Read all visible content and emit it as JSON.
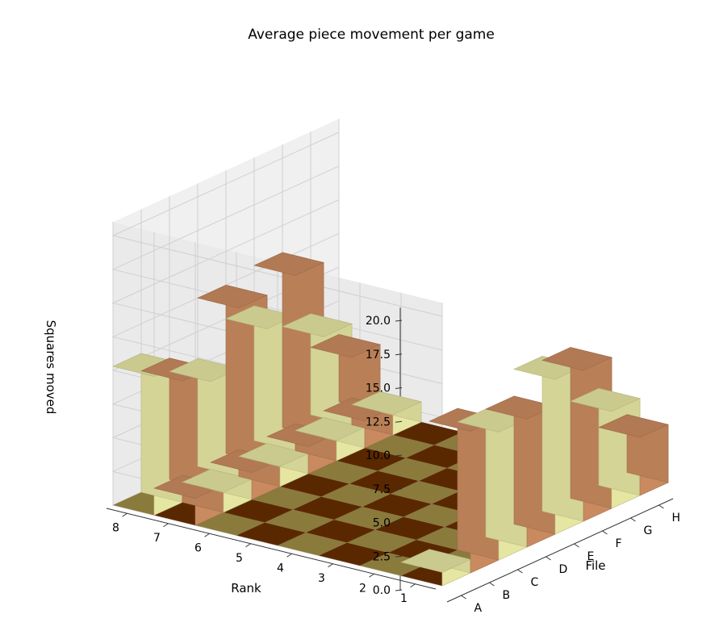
{
  "chart_data": {
    "type": "bar3d",
    "title": "Average piece movement per game",
    "xlabel": "File",
    "ylabel": "Rank",
    "zlabel": "Squares moved",
    "x_ticks": [
      "A",
      "B",
      "C",
      "D",
      "E",
      "F",
      "G",
      "H"
    ],
    "y_ticks": [
      "1",
      "2",
      "3",
      "4",
      "5",
      "6",
      "7",
      "8"
    ],
    "z_ticks": [
      "0.0",
      "2.5",
      "5.0",
      "7.5",
      "10.0",
      "12.5",
      "15.0",
      "17.5",
      "20.0"
    ],
    "zlim": [
      0,
      21
    ],
    "grid": true,
    "colors": {
      "light_piece": "#e6e6a3",
      "dark_piece": "#c98a5f",
      "light_square": "#8a7a3c",
      "dark_square": "#5a2800"
    },
    "bars": [
      {
        "file": "A",
        "rank": 1,
        "value": 1.0,
        "color": "light"
      },
      {
        "file": "B",
        "rank": 1,
        "value": 10.5,
        "color": "dark"
      },
      {
        "file": "C",
        "rank": 1,
        "value": 9.5,
        "color": "light"
      },
      {
        "file": "D",
        "rank": 1,
        "value": 9.5,
        "color": "dark"
      },
      {
        "file": "E",
        "rank": 1,
        "value": 11.5,
        "color": "light"
      },
      {
        "file": "F",
        "rank": 1,
        "value": 11.2,
        "color": "dark"
      },
      {
        "file": "G",
        "rank": 1,
        "value": 7.2,
        "color": "light"
      },
      {
        "file": "H",
        "rank": 1,
        "value": 4.3,
        "color": "dark"
      },
      {
        "file": "A",
        "rank": 2,
        "value": 0.0,
        "color": "dark"
      },
      {
        "file": "B",
        "rank": 2,
        "value": 0.0,
        "color": "light"
      },
      {
        "file": "C",
        "rank": 2,
        "value": 0.0,
        "color": "dark"
      },
      {
        "file": "D",
        "rank": 2,
        "value": 0.0,
        "color": "light"
      },
      {
        "file": "E",
        "rank": 2,
        "value": 0.0,
        "color": "dark"
      },
      {
        "file": "F",
        "rank": 2,
        "value": 0.0,
        "color": "light"
      },
      {
        "file": "G",
        "rank": 2,
        "value": 0.0,
        "color": "dark"
      },
      {
        "file": "H",
        "rank": 2,
        "value": 0.0,
        "color": "light"
      },
      {
        "file": "A",
        "rank": 7,
        "value": 2.0,
        "color": "dark"
      },
      {
        "file": "B",
        "rank": 7,
        "value": 1.5,
        "color": "light"
      },
      {
        "file": "C",
        "rank": 7,
        "value": 2.0,
        "color": "dark"
      },
      {
        "file": "D",
        "rank": 7,
        "value": 1.5,
        "color": "light"
      },
      {
        "file": "E",
        "rank": 7,
        "value": 2.0,
        "color": "dark"
      },
      {
        "file": "F",
        "rank": 7,
        "value": 1.5,
        "color": "light"
      },
      {
        "file": "G",
        "rank": 7,
        "value": 2.0,
        "color": "dark"
      },
      {
        "file": "H",
        "rank": 7,
        "value": 1.5,
        "color": "light"
      },
      {
        "file": "A",
        "rank": 8,
        "value": 10.3,
        "color": "light"
      },
      {
        "file": "B",
        "rank": 8,
        "value": 9.0,
        "color": "dark"
      },
      {
        "file": "C",
        "rank": 8,
        "value": 8.0,
        "color": "light"
      },
      {
        "file": "D",
        "rank": 8,
        "value": 12.5,
        "color": "dark"
      },
      {
        "file": "E",
        "rank": 8,
        "value": 10.0,
        "color": "light"
      },
      {
        "file": "F",
        "rank": 8,
        "value": 13.0,
        "color": "dark"
      },
      {
        "file": "G",
        "rank": 8,
        "value": 7.5,
        "color": "light"
      },
      {
        "file": "H",
        "rank": 8,
        "value": 5.0,
        "color": "dark"
      }
    ]
  }
}
